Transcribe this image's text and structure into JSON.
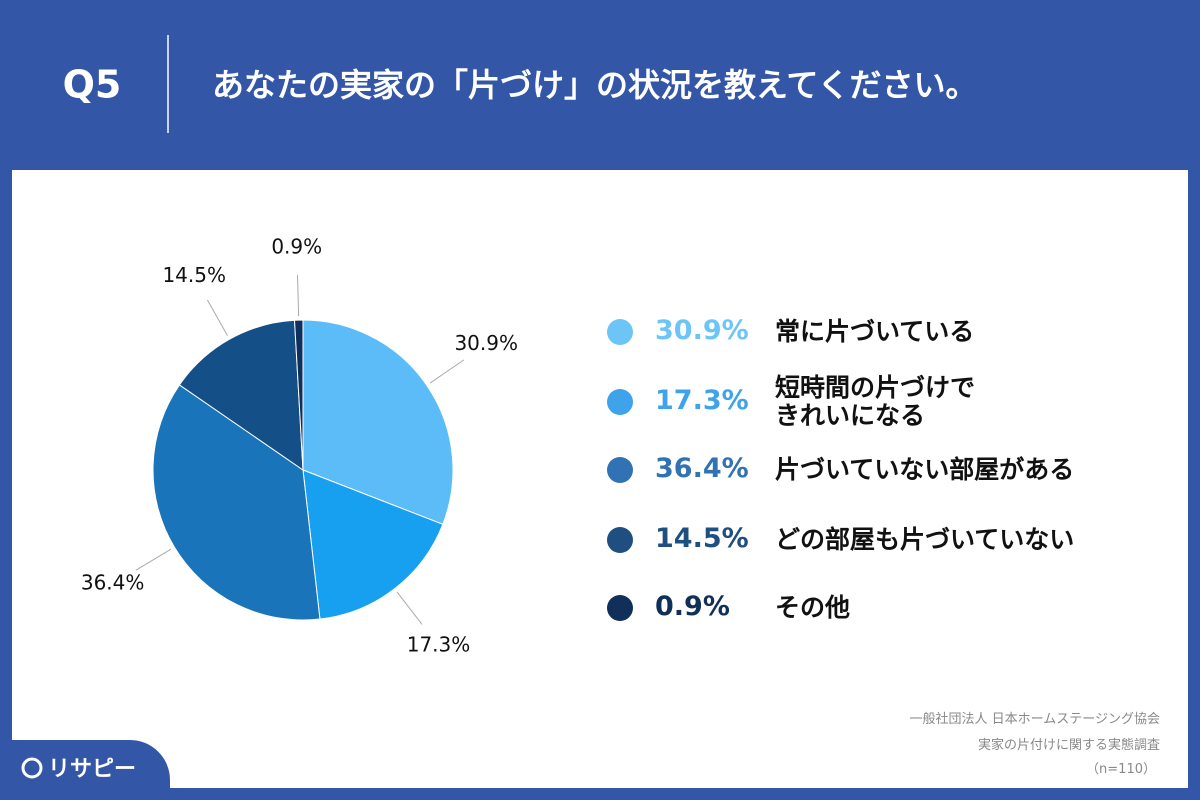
{
  "header": {
    "number": "Q5",
    "question": "あなたの実家の「片づけ」の状況を教えてください。"
  },
  "chart_data": {
    "type": "pie",
    "categories": [
      "常に片づいている",
      "短時間の片づけで\nきれいになる",
      "片づいていない部屋がある",
      "どの部屋も片づいていない",
      "その他"
    ],
    "values": [
      30.9,
      17.3,
      36.4,
      14.5,
      0.9
    ],
    "value_labels": [
      "30.9%",
      "17.3%",
      "36.4%",
      "14.5%",
      "0.9%"
    ],
    "colors": [
      "#5bbcf7",
      "#17a0f0",
      "#1a74ba",
      "#144f87",
      "#0f2f5c"
    ],
    "legend_colors": [
      "#6dc5f7",
      "#3ea3ea",
      "#3072b3",
      "#1e4f80",
      "#10305a"
    ]
  },
  "source": [
    "一般社団法人 日本ホームステージング協会",
    "実家の片付けに関する実態調査",
    "（n=110）"
  ],
  "logo": "リサピー"
}
